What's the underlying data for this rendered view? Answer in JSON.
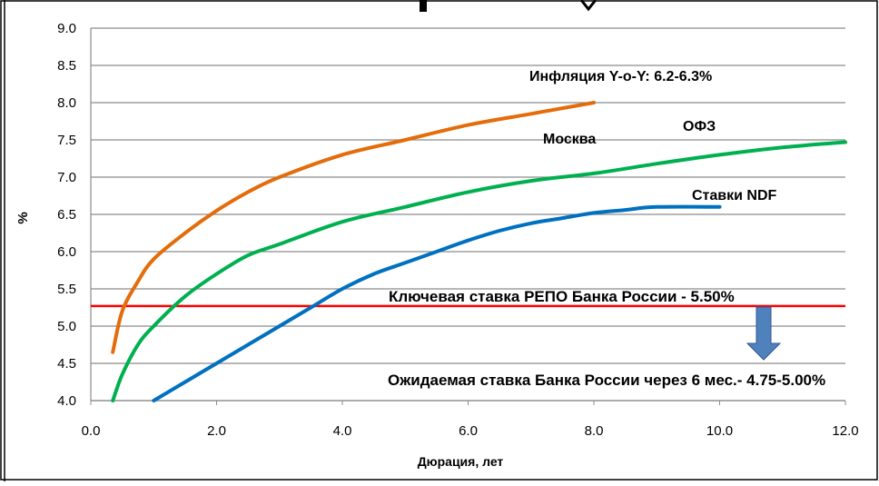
{
  "chart_data": {
    "type": "line",
    "xlabel": "Дюрация, лет",
    "ylabel": "%",
    "xlim": [
      0,
      12
    ],
    "ylim": [
      4.0,
      9.0
    ],
    "x_ticks": [
      "0.0",
      "2.0",
      "4.0",
      "6.0",
      "8.0",
      "10.0",
      "12.0"
    ],
    "y_ticks": [
      "4.0",
      "4.5",
      "5.0",
      "5.5",
      "6.0",
      "6.5",
      "7.0",
      "7.5",
      "8.0",
      "8.5",
      "9.0"
    ],
    "grid": "horizontal",
    "series": [
      {
        "name": "Москва",
        "color": "#e46c0a",
        "x": [
          0.35,
          0.5,
          0.75,
          1.0,
          1.5,
          2.0,
          2.5,
          3.0,
          4.0,
          5.0,
          6.0,
          7.0,
          8.0
        ],
        "y": [
          4.65,
          5.2,
          5.6,
          5.9,
          6.25,
          6.55,
          6.8,
          7.0,
          7.3,
          7.5,
          7.7,
          7.85,
          8.0
        ]
      },
      {
        "name": "ОФЗ",
        "color": "#00b050",
        "x": [
          0.35,
          0.5,
          0.75,
          1.0,
          1.5,
          2.0,
          2.5,
          3.0,
          4.0,
          5.0,
          6.0,
          7.0,
          8.0,
          9.0,
          10.0,
          11.0,
          12.0
        ],
        "y": [
          4.0,
          4.35,
          4.75,
          5.0,
          5.4,
          5.7,
          5.95,
          6.1,
          6.4,
          6.6,
          6.8,
          6.95,
          7.05,
          7.18,
          7.3,
          7.4,
          7.47
        ]
      },
      {
        "name": "Ставки NDF",
        "color": "#0070c0",
        "x": [
          1.0,
          1.5,
          2.0,
          2.5,
          3.0,
          3.5,
          4.0,
          4.5,
          5.0,
          5.5,
          6.0,
          6.5,
          7.0,
          7.5,
          8.0,
          8.5,
          9.0,
          10.0
        ],
        "y": [
          4.0,
          4.25,
          4.5,
          4.75,
          5.0,
          5.25,
          5.5,
          5.7,
          5.85,
          6.0,
          6.15,
          6.28,
          6.38,
          6.45,
          6.52,
          6.56,
          6.6,
          6.6
        ]
      }
    ],
    "reference_line": {
      "y": 5.27,
      "color": "#ff0000"
    },
    "annotations": [
      {
        "text": "Инфляция Y-o-Y:  6.2-6.3%"
      },
      {
        "text": "Москва"
      },
      {
        "text": "ОФЗ"
      },
      {
        "text": "Ставки NDF"
      },
      {
        "text": "Ключевая ставка РЕПО Банка России - 5.50%"
      },
      {
        "text": "Ожидаемая ставка Банка России через 6 мес.- 4.75-5.00%"
      }
    ],
    "arrow_color": "#4f81bd"
  }
}
